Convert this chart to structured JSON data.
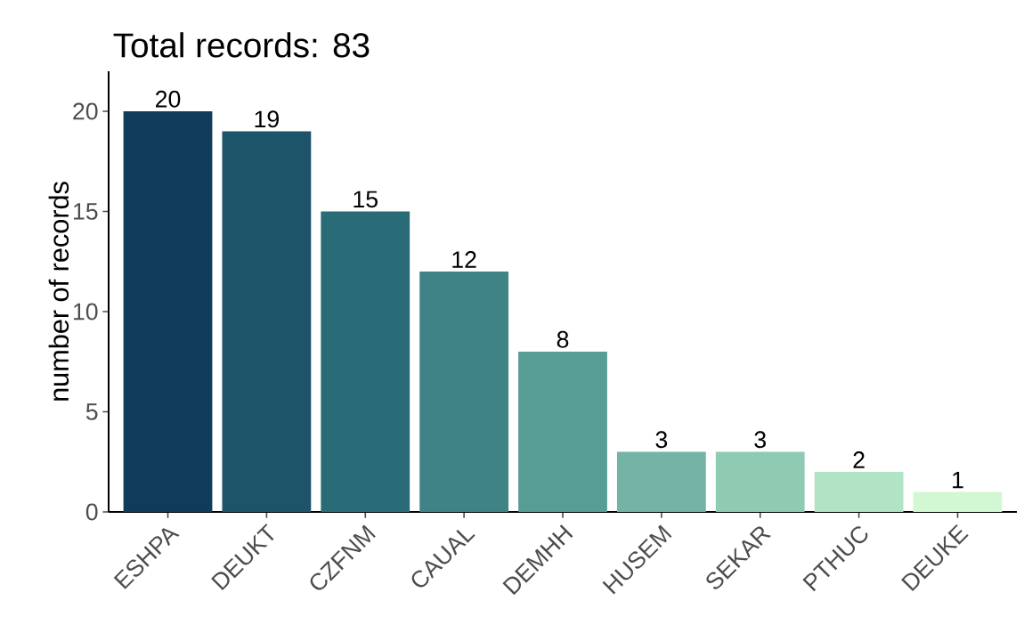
{
  "chart_data": {
    "type": "bar",
    "title": "Total records: 83",
    "ylabel": "number of records",
    "categories": [
      "ESHPA",
      "DEUKT",
      "CZFNM",
      "CAUAL",
      "DEMHH",
      "HUSEM",
      "SEKAR",
      "PTHUC",
      "DEUKE"
    ],
    "values": [
      20,
      19,
      15,
      12,
      8,
      3,
      3,
      2,
      1
    ],
    "colors": [
      "#103c5a",
      "#1d546a",
      "#2a6b78",
      "#3f8386",
      "#589c96",
      "#74b3a6",
      "#8ecbb2",
      "#b0e4c5",
      "#d2f8d3"
    ],
    "ylim": [
      0,
      22
    ],
    "yticks": [
      0,
      5,
      10,
      15,
      20
    ],
    "data_labels": true,
    "grid": false
  }
}
